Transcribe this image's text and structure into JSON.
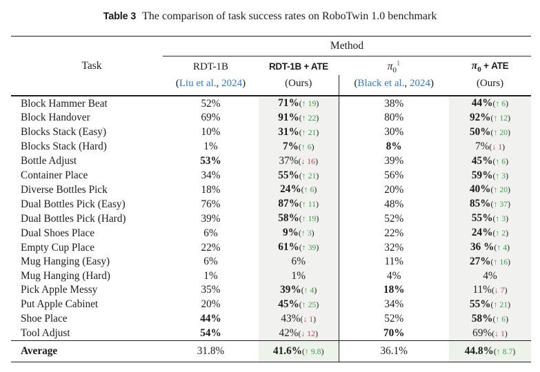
{
  "colors": {
    "link_blue": "#2e79cc",
    "up_green": "#3da04b",
    "down_red": "#b64a52",
    "shade_gray": "#f1f1ef",
    "shade_avg": "#edf3ea"
  },
  "icons": {
    "up_arrow": "↑",
    "down_arrow": "↓"
  },
  "caption": {
    "label": "Table 3",
    "text": "The comparison of task success rates on RoboTwin 1.0 benchmark"
  },
  "table": {
    "task_header": "Task",
    "method_header": "Method",
    "columns": [
      {
        "id": "rdt",
        "title": "RDT-1B",
        "citation": {
          "open": "(",
          "authors": "Liu et al.",
          "sep": ", ",
          "year": "2024",
          "close": ")"
        },
        "shaded": false
      },
      {
        "id": "rdt-ate",
        "title": "RDT-1B + ATE",
        "ours": "(Ours)",
        "shaded": true
      },
      {
        "id": "pi0",
        "symbol": "π",
        "subscript": "0",
        "footnote": "1",
        "citation": {
          "open": "(",
          "authors": "Black et al.",
          "sep": ", ",
          "year": "2024",
          "close": ")"
        },
        "shaded": false
      },
      {
        "id": "pi0-ate",
        "symbol": "π",
        "subscript": "0",
        "suffix": " + ATE",
        "ours": "(Ours)",
        "shaded": true
      }
    ],
    "rows": [
      {
        "task": "Block Hammer Beat",
        "cells": [
          {
            "v": "52%"
          },
          {
            "v": "71%",
            "b": true,
            "d": "+19"
          },
          {
            "v": "38%"
          },
          {
            "v": "44%",
            "b": true,
            "d": "+6"
          }
        ]
      },
      {
        "task": "Block Handover",
        "cells": [
          {
            "v": "69%"
          },
          {
            "v": "91%",
            "b": true,
            "d": "+22"
          },
          {
            "v": "80%"
          },
          {
            "v": "92%",
            "b": true,
            "d": "+12"
          }
        ]
      },
      {
        "task": "Blocks Stack (Easy)",
        "cells": [
          {
            "v": "10%"
          },
          {
            "v": "31%",
            "b": true,
            "d": "+21"
          },
          {
            "v": "30%"
          },
          {
            "v": "50%",
            "b": true,
            "d": "+20"
          }
        ]
      },
      {
        "task": "Blocks Stack (Hard)",
        "cells": [
          {
            "v": "1%"
          },
          {
            "v": "7%",
            "b": true,
            "d": "+6"
          },
          {
            "v": "8%",
            "b": true
          },
          {
            "v": "7%",
            "d": "-1"
          }
        ]
      },
      {
        "task": "Bottle Adjust",
        "cells": [
          {
            "v": "53%",
            "b": true
          },
          {
            "v": "37%",
            "d": "-16"
          },
          {
            "v": "39%"
          },
          {
            "v": "45%",
            "b": true,
            "d": "+6"
          }
        ]
      },
      {
        "task": "Container Place",
        "cells": [
          {
            "v": "34%"
          },
          {
            "v": "55%",
            "b": true,
            "d": "+21"
          },
          {
            "v": "56%"
          },
          {
            "v": "59%",
            "b": true,
            "d": "+3"
          }
        ]
      },
      {
        "task": "Diverse Bottles Pick",
        "cells": [
          {
            "v": "18%"
          },
          {
            "v": "24%",
            "b": true,
            "d": "+6"
          },
          {
            "v": "20%"
          },
          {
            "v": "40%",
            "b": true,
            "d": "+20"
          }
        ]
      },
      {
        "task": "Dual Bottles Pick (Easy)",
        "cells": [
          {
            "v": "76%"
          },
          {
            "v": "87%",
            "b": true,
            "d": "+11"
          },
          {
            "v": "48%"
          },
          {
            "v": "85%",
            "b": true,
            "d": "+37"
          }
        ]
      },
      {
        "task": "Dual Bottles Pick (Hard)",
        "cells": [
          {
            "v": "39%"
          },
          {
            "v": "58%",
            "b": true,
            "d": "+19"
          },
          {
            "v": "52%"
          },
          {
            "v": "55%",
            "b": true,
            "d": "+3"
          }
        ]
      },
      {
        "task": "Dual Shoes Place",
        "cells": [
          {
            "v": "6%"
          },
          {
            "v": "9%",
            "b": true,
            "d": "+3"
          },
          {
            "v": "22%"
          },
          {
            "v": "24%",
            "b": true,
            "d": "+2"
          }
        ]
      },
      {
        "task": "Empty Cup Place",
        "cells": [
          {
            "v": "22%"
          },
          {
            "v": "61%",
            "b": true,
            "d": "+39"
          },
          {
            "v": "32%"
          },
          {
            "v": "36 %",
            "b": true,
            "d": "+4"
          }
        ]
      },
      {
        "task": "Mug Hanging (Easy)",
        "cells": [
          {
            "v": "6%"
          },
          {
            "v": "6%"
          },
          {
            "v": "11%"
          },
          {
            "v": "27%",
            "b": true,
            "d": "+16"
          }
        ]
      },
      {
        "task": "Mug Hanging (Hard)",
        "cells": [
          {
            "v": "1%"
          },
          {
            "v": "1%"
          },
          {
            "v": "4%"
          },
          {
            "v": "4%"
          }
        ]
      },
      {
        "task": "Pick Apple Messy",
        "cells": [
          {
            "v": "35%"
          },
          {
            "v": "39%",
            "b": true,
            "d": "+4"
          },
          {
            "v": "18%",
            "b": true
          },
          {
            "v": "11%",
            "d": "-7"
          }
        ]
      },
      {
        "task": "Put Apple Cabinet",
        "cells": [
          {
            "v": "20%"
          },
          {
            "v": "45%",
            "b": true,
            "d": "+25"
          },
          {
            "v": "34%"
          },
          {
            "v": "55%",
            "b": true,
            "d": "+21"
          }
        ]
      },
      {
        "task": "Shoe Place",
        "cells": [
          {
            "v": "44%",
            "b": true
          },
          {
            "v": "43%",
            "d": "-1"
          },
          {
            "v": "52%"
          },
          {
            "v": "58%",
            "b": true,
            "d": "+6"
          }
        ]
      },
      {
        "task": "Tool Adjust",
        "cells": [
          {
            "v": "54%",
            "b": true
          },
          {
            "v": "42%",
            "d": "-12"
          },
          {
            "v": "70%",
            "b": true
          },
          {
            "v": "69%",
            "d": "-1"
          }
        ]
      }
    ],
    "average": {
      "task": "Average",
      "cells": [
        {
          "v": "31.8%"
        },
        {
          "v": "41.6%",
          "b": true,
          "d": "+9.8"
        },
        {
          "v": "36.1%"
        },
        {
          "v": "44.8%",
          "b": true,
          "d": "+8.7"
        }
      ]
    }
  }
}
